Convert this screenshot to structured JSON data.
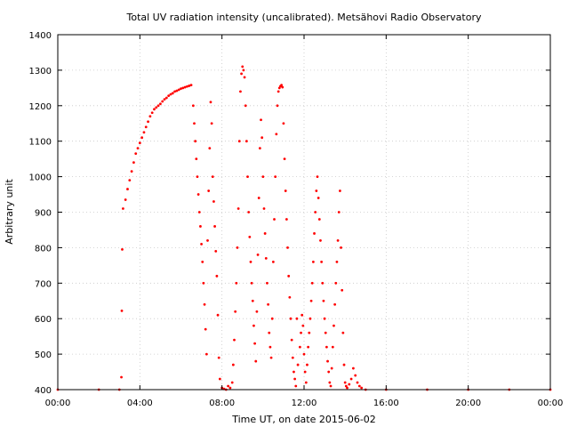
{
  "chart_data": {
    "type": "scatter",
    "title": "Total UV radiation intensity (uncalibrated). Metsähovi Radio Observatory",
    "xlabel": "Time UT, on date 2015-06-02",
    "ylabel": "Arbitrary unit",
    "xlim": [
      0,
      24
    ],
    "ylim": [
      400,
      1400
    ],
    "x_unit": "hour of day (UT)",
    "xticks": [
      {
        "value": 0,
        "label": "00:00"
      },
      {
        "value": 4,
        "label": "04:00"
      },
      {
        "value": 8,
        "label": "08:00"
      },
      {
        "value": 12,
        "label": "12:00"
      },
      {
        "value": 16,
        "label": "16:00"
      },
      {
        "value": 20,
        "label": "20:00"
      },
      {
        "value": 24,
        "label": "00:00"
      }
    ],
    "yticks": [
      400,
      500,
      600,
      700,
      800,
      900,
      1000,
      1100,
      1200,
      1300,
      1400
    ],
    "grid": true,
    "marker_color": "#ff0000",
    "marker": "dot",
    "series": [
      {
        "points": [
          [
            0,
            400
          ],
          [
            2,
            400
          ],
          [
            3,
            400
          ],
          [
            3.1,
            435
          ],
          [
            3.12,
            622
          ],
          [
            3.14,
            795
          ],
          [
            3.18,
            910
          ],
          [
            3.3,
            935
          ],
          [
            3.4,
            965
          ],
          [
            3.5,
            990
          ],
          [
            3.6,
            1015
          ],
          [
            3.7,
            1040
          ],
          [
            3.8,
            1065
          ],
          [
            3.9,
            1080
          ],
          [
            4.0,
            1095
          ],
          [
            4.1,
            1110
          ],
          [
            4.2,
            1125
          ],
          [
            4.3,
            1140
          ],
          [
            4.4,
            1155
          ],
          [
            4.5,
            1170
          ],
          [
            4.6,
            1180
          ],
          [
            4.7,
            1190
          ],
          [
            4.8,
            1195
          ],
          [
            4.9,
            1200
          ],
          [
            5.0,
            1205
          ],
          [
            5.1,
            1212
          ],
          [
            5.2,
            1218
          ],
          [
            5.3,
            1222
          ],
          [
            5.4,
            1228
          ],
          [
            5.5,
            1232
          ],
          [
            5.6,
            1235
          ],
          [
            5.7,
            1240
          ],
          [
            5.8,
            1242
          ],
          [
            5.9,
            1245
          ],
          [
            6.0,
            1248
          ],
          [
            6.1,
            1250
          ],
          [
            6.2,
            1252
          ],
          [
            6.3,
            1254
          ],
          [
            6.4,
            1256
          ],
          [
            6.5,
            1258
          ],
          [
            6.6,
            1200
          ],
          [
            6.65,
            1150
          ],
          [
            6.7,
            1100
          ],
          [
            6.75,
            1050
          ],
          [
            6.8,
            1000
          ],
          [
            6.85,
            950
          ],
          [
            6.9,
            900
          ],
          [
            6.95,
            860
          ],
          [
            7.0,
            810
          ],
          [
            7.05,
            760
          ],
          [
            7.1,
            700
          ],
          [
            7.15,
            640
          ],
          [
            7.2,
            570
          ],
          [
            7.25,
            500
          ],
          [
            7.3,
            820
          ],
          [
            7.35,
            960
          ],
          [
            7.4,
            1080
          ],
          [
            7.45,
            1210
          ],
          [
            7.5,
            1150
          ],
          [
            7.55,
            1000
          ],
          [
            7.6,
            930
          ],
          [
            7.65,
            860
          ],
          [
            7.7,
            790
          ],
          [
            7.75,
            720
          ],
          [
            7.8,
            610
          ],
          [
            7.85,
            490
          ],
          [
            7.9,
            430
          ],
          [
            8.0,
            405
          ],
          [
            8.1,
            402
          ],
          [
            8.2,
            400
          ],
          [
            8.3,
            410
          ],
          [
            8.4,
            405
          ],
          [
            8.5,
            420
          ],
          [
            8.55,
            470
          ],
          [
            8.6,
            540
          ],
          [
            8.65,
            620
          ],
          [
            8.7,
            700
          ],
          [
            8.75,
            800
          ],
          [
            8.8,
            910
          ],
          [
            8.85,
            1100
          ],
          [
            8.9,
            1240
          ],
          [
            8.95,
            1290
          ],
          [
            9.0,
            1310
          ],
          [
            9.05,
            1300
          ],
          [
            9.1,
            1280
          ],
          [
            9.15,
            1200
          ],
          [
            9.2,
            1100
          ],
          [
            9.25,
            1000
          ],
          [
            9.3,
            900
          ],
          [
            9.35,
            830
          ],
          [
            9.4,
            760
          ],
          [
            9.45,
            700
          ],
          [
            9.5,
            650
          ],
          [
            9.55,
            580
          ],
          [
            9.6,
            530
          ],
          [
            9.65,
            480
          ],
          [
            9.7,
            620
          ],
          [
            9.75,
            780
          ],
          [
            9.8,
            940
          ],
          [
            9.85,
            1080
          ],
          [
            9.9,
            1160
          ],
          [
            9.95,
            1110
          ],
          [
            10.0,
            1000
          ],
          [
            10.05,
            910
          ],
          [
            10.1,
            840
          ],
          [
            10.15,
            770
          ],
          [
            10.2,
            700
          ],
          [
            10.25,
            640
          ],
          [
            10.3,
            560
          ],
          [
            10.35,
            520
          ],
          [
            10.4,
            490
          ],
          [
            10.45,
            600
          ],
          [
            10.5,
            760
          ],
          [
            10.55,
            880
          ],
          [
            10.6,
            1000
          ],
          [
            10.65,
            1120
          ],
          [
            10.7,
            1200
          ],
          [
            10.75,
            1240
          ],
          [
            10.8,
            1250
          ],
          [
            10.85,
            1255
          ],
          [
            10.9,
            1258
          ],
          [
            10.95,
            1252
          ],
          [
            11.0,
            1150
          ],
          [
            11.05,
            1050
          ],
          [
            11.1,
            960
          ],
          [
            11.15,
            880
          ],
          [
            11.2,
            800
          ],
          [
            11.25,
            720
          ],
          [
            11.3,
            660
          ],
          [
            11.35,
            600
          ],
          [
            11.4,
            540
          ],
          [
            11.45,
            490
          ],
          [
            11.5,
            450
          ],
          [
            11.55,
            430
          ],
          [
            11.6,
            410
          ],
          [
            11.65,
            600
          ],
          [
            11.7,
            470
          ],
          [
            11.8,
            520
          ],
          [
            11.85,
            560
          ],
          [
            11.9,
            610
          ],
          [
            11.95,
            580
          ],
          [
            12.0,
            500
          ],
          [
            12.05,
            450
          ],
          [
            12.1,
            420
          ],
          [
            12.15,
            470
          ],
          [
            12.2,
            520
          ],
          [
            12.25,
            560
          ],
          [
            12.3,
            600
          ],
          [
            12.35,
            650
          ],
          [
            12.4,
            700
          ],
          [
            12.45,
            760
          ],
          [
            12.5,
            840
          ],
          [
            12.55,
            900
          ],
          [
            12.6,
            960
          ],
          [
            12.65,
            1000
          ],
          [
            12.7,
            940
          ],
          [
            12.75,
            880
          ],
          [
            12.8,
            820
          ],
          [
            12.85,
            760
          ],
          [
            12.9,
            700
          ],
          [
            12.95,
            650
          ],
          [
            13.0,
            600
          ],
          [
            13.05,
            560
          ],
          [
            13.1,
            520
          ],
          [
            13.15,
            480
          ],
          [
            13.2,
            450
          ],
          [
            13.25,
            420
          ],
          [
            13.3,
            410
          ],
          [
            13.35,
            460
          ],
          [
            13.4,
            520
          ],
          [
            13.45,
            580
          ],
          [
            13.5,
            640
          ],
          [
            13.55,
            700
          ],
          [
            13.6,
            760
          ],
          [
            13.65,
            820
          ],
          [
            13.7,
            900
          ],
          [
            13.75,
            960
          ],
          [
            13.8,
            800
          ],
          [
            13.85,
            680
          ],
          [
            13.9,
            560
          ],
          [
            13.95,
            470
          ],
          [
            14.0,
            420
          ],
          [
            14.05,
            410
          ],
          [
            14.1,
            405
          ],
          [
            14.2,
            415
          ],
          [
            14.3,
            430
          ],
          [
            14.4,
            460
          ],
          [
            14.5,
            440
          ],
          [
            14.6,
            420
          ],
          [
            14.7,
            410
          ],
          [
            14.8,
            405
          ],
          [
            15.0,
            400
          ],
          [
            16.0,
            400
          ],
          [
            18.0,
            400
          ],
          [
            20.0,
            400
          ],
          [
            22.0,
            400
          ],
          [
            24.0,
            400
          ]
        ]
      }
    ]
  }
}
